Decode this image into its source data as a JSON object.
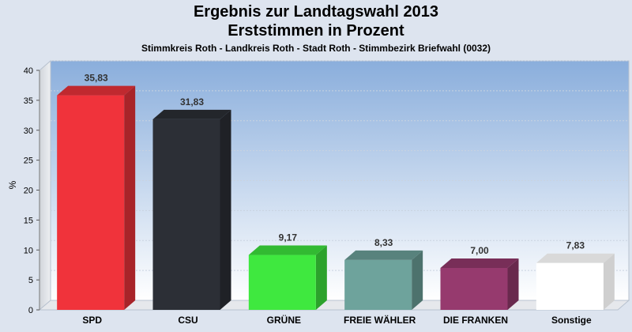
{
  "chart_data": {
    "type": "bar",
    "title": "Ergebnis zur Landtagswahl 2013",
    "subtitle": "Erststimmen in Prozent",
    "subtitle2": "Stimmkreis Roth - Landkreis Roth - Stadt Roth - Stimmbezirk Briefwahl (0032)",
    "ylabel": "%",
    "xlabel": "",
    "ylim": [
      0,
      40
    ],
    "yticks": [
      0,
      5,
      10,
      15,
      20,
      25,
      30,
      35,
      40
    ],
    "grid": true,
    "categories": [
      "SPD",
      "CSU",
      "GRÜNE",
      "FREIE WÄHLER",
      "DIE FRANKEN",
      "Sonstige"
    ],
    "values": [
      35.83,
      31.83,
      9.17,
      8.33,
      7.0,
      7.83
    ],
    "value_labels": [
      "35,83",
      "31,83",
      "9,17",
      "8,33",
      "7,00",
      "7,83"
    ],
    "colors": [
      "#f0333b",
      "#2c2f36",
      "#3fe83f",
      "#6ea39c",
      "#963a6e",
      "#ffffff"
    ]
  }
}
